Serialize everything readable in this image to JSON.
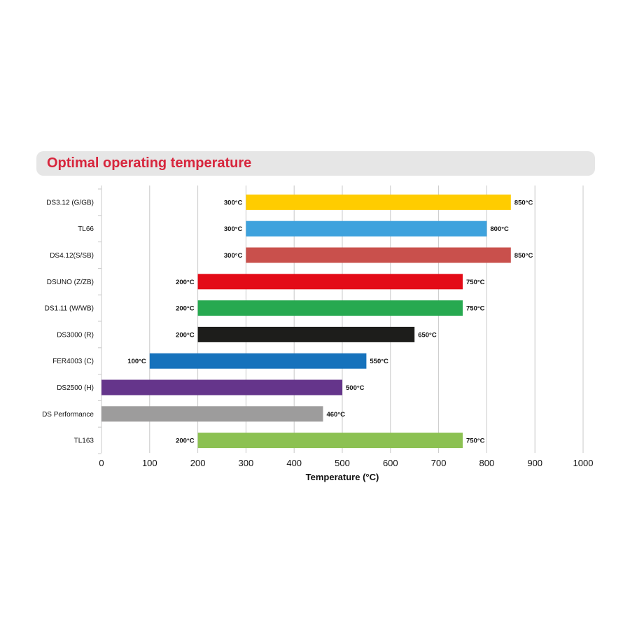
{
  "title": "Optimal operating temperature",
  "chart_data": {
    "type": "bar",
    "orientation": "horizontal",
    "floating": true,
    "title": "Optimal operating temperature",
    "xlabel": "Temperature (°C)",
    "ylabel": "",
    "xlim": [
      0,
      1000
    ],
    "xticks": [
      0,
      100,
      200,
      300,
      400,
      500,
      600,
      700,
      800,
      900,
      1000
    ],
    "grid": "vertical",
    "unit": "°C",
    "series": [
      {
        "category": "DS3.12 (G/GB)",
        "min": 300,
        "max": 850,
        "color": "#ffcc00"
      },
      {
        "category": "TL66",
        "min": 300,
        "max": 800,
        "color": "#3ea2dd"
      },
      {
        "category": "DS4.12(S/SB)",
        "min": 300,
        "max": 850,
        "color": "#c9504c"
      },
      {
        "category": "DSUNO (Z/ZB)",
        "min": 200,
        "max": 750,
        "color": "#e30b17"
      },
      {
        "category": "DS1.11 (W/WB)",
        "min": 200,
        "max": 750,
        "color": "#27a950"
      },
      {
        "category": "DS3000 (R)",
        "min": 200,
        "max": 650,
        "color": "#1d1d1b"
      },
      {
        "category": "FER4003 (C)",
        "min": 100,
        "max": 550,
        "color": "#1672bc"
      },
      {
        "category": "DS2500 (H)",
        "min": 0,
        "max": 500,
        "color": "#65358b"
      },
      {
        "category": "DS Performance",
        "min": 0,
        "max": 460,
        "color": "#9d9c9c"
      },
      {
        "category": "TL163",
        "min": 200,
        "max": 750,
        "color": "#8cc152"
      }
    ],
    "min_labels": [
      "300°C",
      "300°C",
      "300°C",
      "200°C",
      "200°C",
      "200°C",
      "100°C",
      "",
      "",
      "200°C"
    ],
    "max_labels": [
      "850°C",
      "800°C",
      "850°C",
      "750°C",
      "750°C",
      "650°C",
      "550°C",
      "500°C",
      "460°C",
      "750°C"
    ]
  }
}
